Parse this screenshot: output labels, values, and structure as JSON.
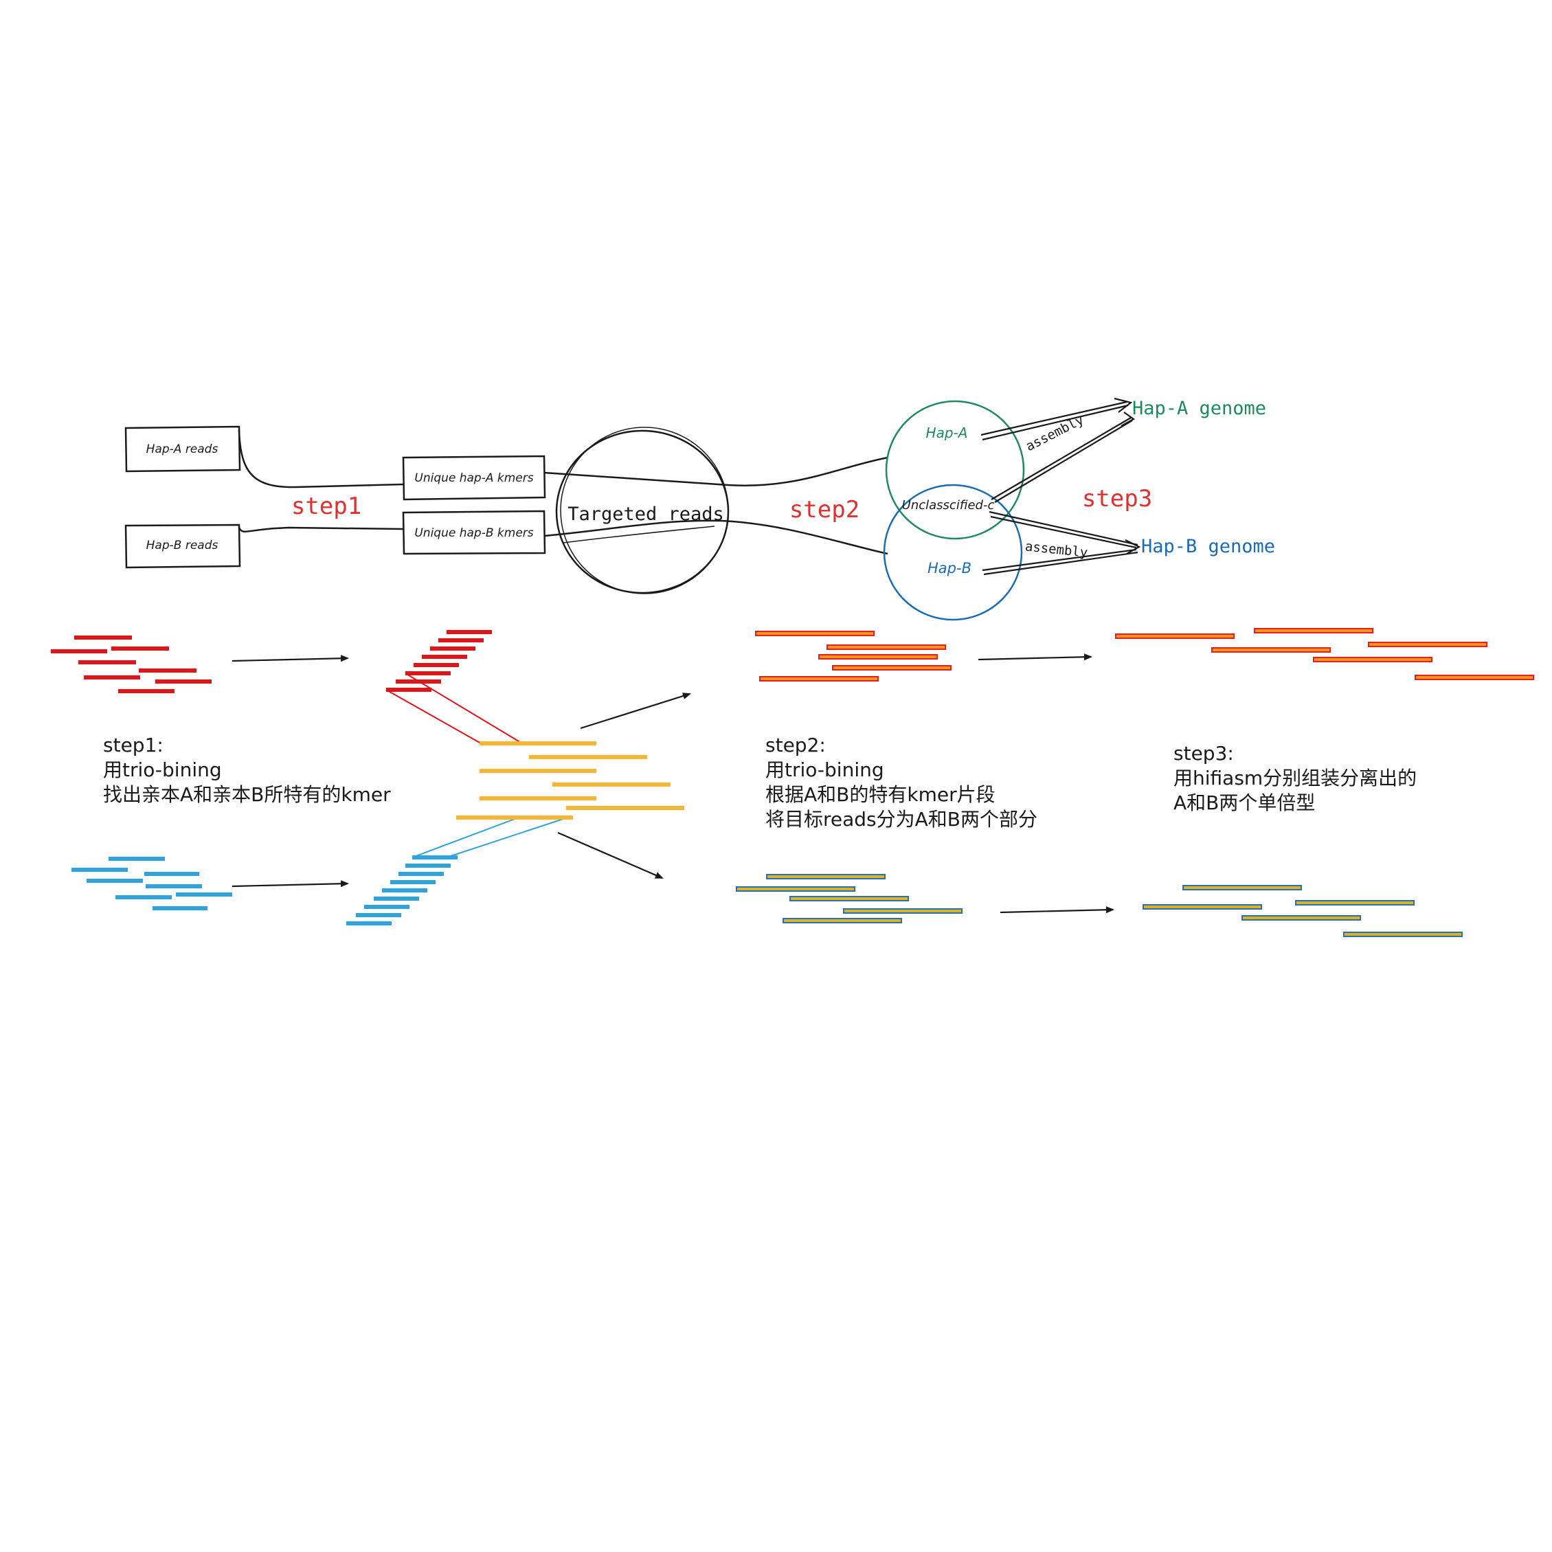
{
  "colors": {
    "ink": "#1a1a1a",
    "red_label": "#e03131",
    "hap_a": "#1e8a5a",
    "hap_b": "#1a6bb5",
    "red_read": "#e0141b",
    "blue_read": "#2ea3dc",
    "yellow_read": "#f5b731",
    "orange_fill": "#f7941d",
    "orange_stroke": "#e02020",
    "olive_fill": "#d9b227",
    "olive_stroke": "#2a6fb0"
  },
  "top": {
    "hap_a_reads": "Hap-A reads",
    "hap_b_reads": "Hap-B reads",
    "unique_a": "Unique hap-A kmers",
    "unique_b": "Unique hap-B kmers",
    "targeted": "Targeted reads",
    "step1": "step1",
    "step2": "step2",
    "step3": "step3",
    "venn_a": "Hap-A",
    "venn_b": "Hap-B",
    "venn_c": "Unclasscified-c",
    "assembly_a": "assembly",
    "assembly_b": "assembly",
    "genome_a": "Hap-A genome",
    "genome_b": "Hap-B genome"
  },
  "captions": {
    "step1": [
      "step1:",
      "用trio-bining",
      "找出亲本A和亲本B所特有的kmer"
    ],
    "step2": [
      "step2:",
      "用trio-bining",
      "根据A和B的特有kmer片段",
      "将目标reads分为A和B两个部分"
    ],
    "step3": [
      "step3:",
      "用hifiasm分别组装分离出的",
      "A和B两个单倍型"
    ]
  }
}
